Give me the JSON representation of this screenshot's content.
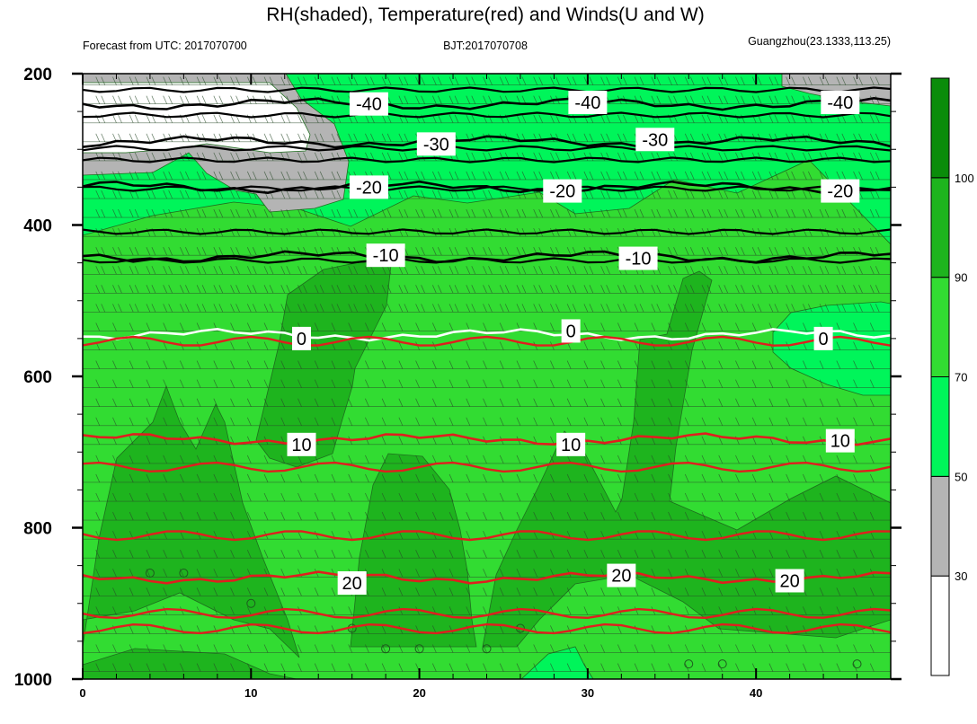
{
  "chart_data": {
    "type": "contour",
    "title": "RH(shaded), Temperature(red) and Winds(U and W)",
    "subtitle_left": "Forecast from UTC: 2017070700",
    "subtitle_center": "BJT:2017070708",
    "subtitle_right": "Guangzhou(23.1333,113.25)",
    "xlim": [
      0,
      48
    ],
    "x_ticks": [
      "0",
      "10",
      "20",
      "30",
      "40"
    ],
    "x_tick_values": [
      0,
      10,
      20,
      30,
      40
    ],
    "ylim": [
      1000,
      200
    ],
    "y_ticks": [
      "200",
      "400",
      "600",
      "800",
      "1000"
    ],
    "y_tick_values": [
      200,
      400,
      600,
      800,
      1000
    ],
    "colorbar": {
      "tick_labels": [
        "30",
        "50",
        "70",
        "90",
        "100"
      ],
      "tick_values": [
        30,
        50,
        70,
        90,
        100
      ],
      "bins": [
        {
          "from": 0,
          "to": 30,
          "color": "#ffffff"
        },
        {
          "from": 30,
          "to": 50,
          "color": "#b4b4b4"
        },
        {
          "from": 50,
          "to": 70,
          "color": "#00f55a"
        },
        {
          "from": 70,
          "to": 90,
          "color": "#32dc32"
        },
        {
          "from": 90,
          "to": 100,
          "color": "#1eb41e"
        },
        {
          "from": 100,
          "to": 110,
          "color": "#0a8c0a"
        }
      ]
    },
    "temperature_contours": [
      {
        "level": -40,
        "label": "-40",
        "pressure": 240,
        "color": "#000000"
      },
      {
        "level": -30,
        "label": "-30",
        "pressure": 290,
        "color": "#000000"
      },
      {
        "level": -20,
        "label": "-20",
        "pressure": 350,
        "color": "#000000"
      },
      {
        "level": -10,
        "label": "-10",
        "pressure": 442,
        "color": "#000000"
      },
      {
        "level": 0,
        "label": "0",
        "pressure": 545,
        "color": "#ffffff"
      },
      {
        "level": 10,
        "label": "10",
        "pressure": 683,
        "color": "#e01e1e"
      },
      {
        "level": 20,
        "label": "20",
        "pressure": 866,
        "color": "#e01e1e"
      }
    ],
    "temperature_label_positions": [
      {
        "level": -40,
        "x": 17,
        "pressure": 240
      },
      {
        "level": -40,
        "x": 30,
        "pressure": 238
      },
      {
        "level": -40,
        "x": 45,
        "pressure": 238
      },
      {
        "level": -30,
        "x": 21,
        "pressure": 293
      },
      {
        "level": -30,
        "x": 34,
        "pressure": 287
      },
      {
        "level": -20,
        "x": 17,
        "pressure": 350
      },
      {
        "level": -20,
        "x": 28.5,
        "pressure": 355
      },
      {
        "level": -20,
        "x": 45,
        "pressure": 355
      },
      {
        "level": -10,
        "x": 18,
        "pressure": 440
      },
      {
        "level": -10,
        "x": 33,
        "pressure": 444
      },
      {
        "level": 0,
        "x": 13,
        "pressure": 550
      },
      {
        "level": 0,
        "x": 29,
        "pressure": 540
      },
      {
        "level": 0,
        "x": 44,
        "pressure": 550
      },
      {
        "level": 10,
        "x": 13,
        "pressure": 690
      },
      {
        "level": 10,
        "x": 29,
        "pressure": 690
      },
      {
        "level": 10,
        "x": 45,
        "pressure": 685
      },
      {
        "level": 20,
        "x": 16,
        "pressure": 873
      },
      {
        "level": 20,
        "x": 32,
        "pressure": 863
      },
      {
        "level": 20,
        "x": 42,
        "pressure": 870
      }
    ]
  }
}
